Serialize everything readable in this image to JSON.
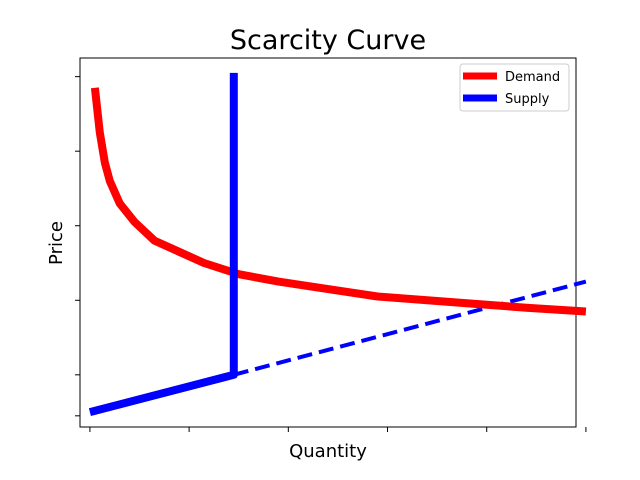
{
  "chart_data": {
    "type": "line",
    "title": "Scarcity Curve",
    "xlabel": "Quantity",
    "ylabel": "Price",
    "xlim": [
      0.5,
      10.5
    ],
    "ylim": [
      0.5,
      10.4
    ],
    "grid": false,
    "tick_labels_visible": false,
    "x_ticks": [
      0.7,
      2.7,
      4.7,
      6.7,
      8.7,
      10.7
    ],
    "y_ticks": [
      0.8,
      1.9,
      3.9,
      5.9,
      7.9,
      9.9
    ],
    "legend": {
      "placement": "top-right",
      "entries": [
        {
          "name": "Demand",
          "color": "#ff0000"
        },
        {
          "name": "Supply",
          "color": "#0000ff"
        }
      ]
    },
    "series": [
      {
        "name": "Demand",
        "color": "#ff0000",
        "style": "solid",
        "points": [
          [
            0.8,
            9.6
          ],
          [
            0.9,
            8.4
          ],
          [
            1.0,
            7.6
          ],
          [
            1.1,
            7.1
          ],
          [
            1.3,
            6.5
          ],
          [
            1.6,
            6.0
          ],
          [
            2.0,
            5.5
          ],
          [
            2.5,
            5.2
          ],
          [
            3.0,
            4.9
          ],
          [
            3.7,
            4.6
          ],
          [
            4.5,
            4.4
          ],
          [
            5.5,
            4.2
          ],
          [
            6.5,
            4.0
          ],
          [
            7.5,
            3.9
          ],
          [
            8.5,
            3.8
          ],
          [
            9.5,
            3.7
          ],
          [
            10.7,
            3.6
          ]
        ]
      },
      {
        "name": "Supply",
        "color": "#0000ff",
        "style": "solid",
        "points": [
          [
            0.7,
            0.9
          ],
          [
            3.6,
            1.9
          ],
          [
            3.6,
            10.0
          ]
        ]
      },
      {
        "name": "",
        "color": "#0000ff",
        "style": "dashed",
        "points": [
          [
            3.6,
            1.9
          ],
          [
            10.7,
            4.4
          ]
        ]
      }
    ]
  }
}
